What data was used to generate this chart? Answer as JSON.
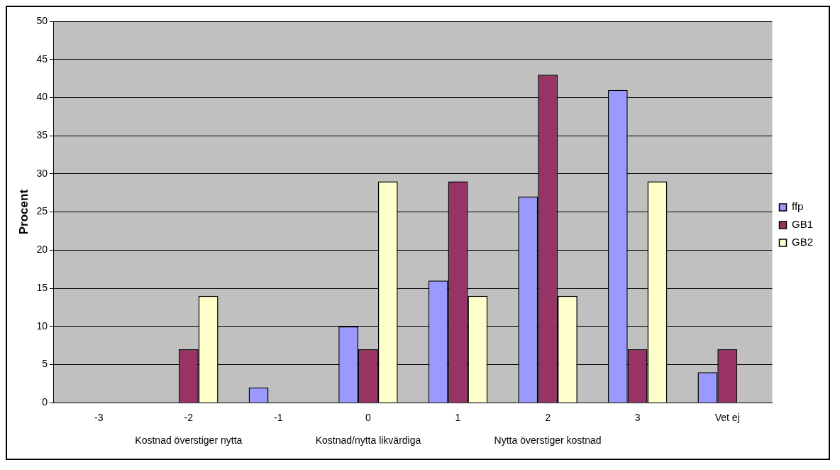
{
  "chart_data": {
    "type": "bar",
    "ylabel": "Procent",
    "categories": [
      "-3",
      "-2",
      "-1",
      "0",
      "1",
      "2",
      "3",
      "Vet ej"
    ],
    "series": [
      {
        "name": "ffp",
        "color": "#9999ff",
        "values": [
          0,
          0,
          2,
          10,
          16,
          27,
          41,
          4
        ]
      },
      {
        "name": "GB1",
        "color": "#993366",
        "values": [
          0,
          7,
          0,
          7,
          29,
          43,
          7,
          7
        ]
      },
      {
        "name": "GB2",
        "color": "#ffffcc",
        "values": [
          0,
          14,
          0,
          29,
          14,
          14,
          29,
          0
        ]
      }
    ],
    "ylim": [
      0,
      50
    ],
    "yticks": [
      0,
      5,
      10,
      15,
      20,
      25,
      30,
      35,
      40,
      45,
      50
    ],
    "grid": "y",
    "legend": "right",
    "annotations": [
      "Kostnad överstiger nytta",
      "Kostnad/nytta likvärdiga",
      "Nytta överstiger kostnad"
    ]
  }
}
